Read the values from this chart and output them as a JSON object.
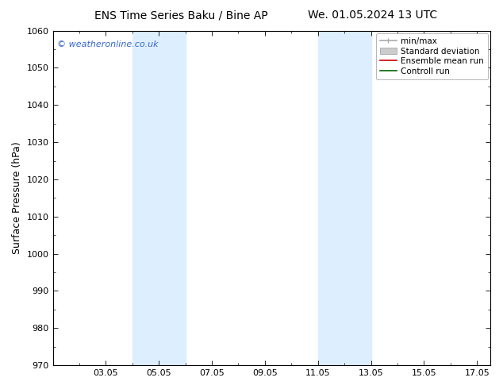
{
  "title_left": "ENS Time Series Baku / Bine AP",
  "title_right": "We. 01.05.2024 13 UTC",
  "ylabel": "Surface Pressure (hPa)",
  "ylim": [
    970,
    1060
  ],
  "yticks": [
    970,
    980,
    990,
    1000,
    1010,
    1020,
    1030,
    1040,
    1050,
    1060
  ],
  "xlim": [
    1.0,
    17.5
  ],
  "xtick_labels": [
    "03.05",
    "05.05",
    "07.05",
    "09.05",
    "11.05",
    "13.05",
    "15.05",
    "17.05"
  ],
  "xtick_positions": [
    3,
    5,
    7,
    9,
    11,
    13,
    15,
    17
  ],
  "shaded_bands": [
    {
      "x_start": 4.0,
      "x_end": 6.0,
      "color": "#ddeeff"
    },
    {
      "x_start": 11.0,
      "x_end": 13.0,
      "color": "#ddeeff"
    }
  ],
  "watermark_text": "© weatheronline.co.uk",
  "watermark_color": "#3366cc",
  "legend_entries": [
    {
      "label": "min/max",
      "color": "#aaaaaa",
      "lw": 1.2,
      "style": "minmax"
    },
    {
      "label": "Standard deviation",
      "color": "#cccccc",
      "lw": 6,
      "style": "band"
    },
    {
      "label": "Ensemble mean run",
      "color": "#cc0000",
      "lw": 1.2,
      "style": "line"
    },
    {
      "label": "Controll run",
      "color": "#006600",
      "lw": 1.2,
      "style": "line"
    }
  ],
  "bg_color": "#ffffff",
  "plot_bg_color": "#ffffff",
  "title_fontsize": 10,
  "axis_label_fontsize": 9,
  "tick_fontsize": 8,
  "legend_fontsize": 7.5
}
